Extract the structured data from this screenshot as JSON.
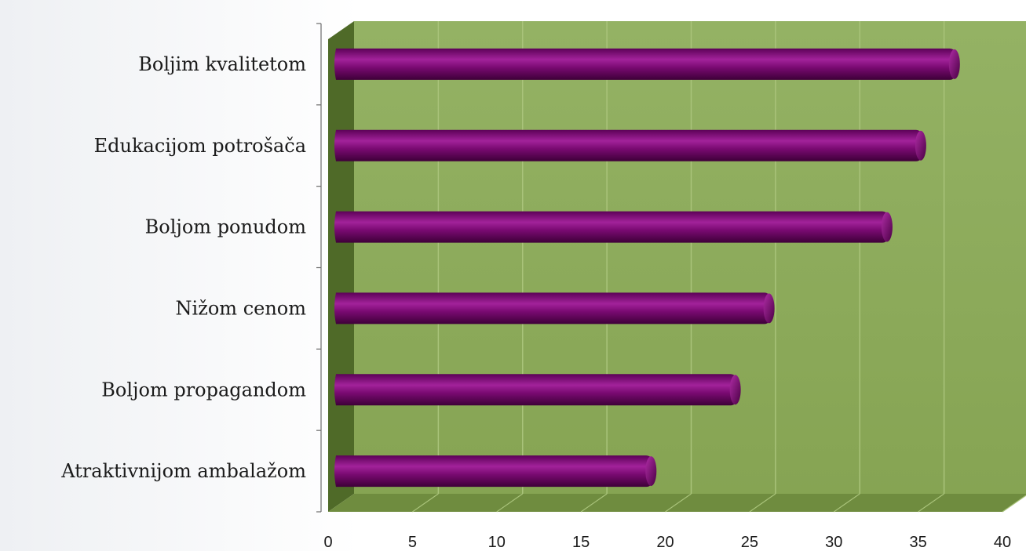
{
  "chart_data": {
    "type": "bar",
    "orientation": "horizontal",
    "categories": [
      "Atraktivnijom ambalažom",
      "Boljom propagandom",
      "Nižom cenom",
      "Boljom ponudom",
      "Edukacijom potrošača",
      "Boljim kvalitetom"
    ],
    "values": [
      18.5,
      23.5,
      25.5,
      32.5,
      34.5,
      36.5
    ],
    "title": "",
    "xlabel": "",
    "ylabel": "",
    "xlim": [
      0,
      40
    ],
    "xticks": [
      0,
      5,
      10,
      15,
      20,
      25,
      30,
      35,
      40
    ],
    "grid": true,
    "legend": "none",
    "colors": {
      "bar": "#7a0a72",
      "bar_highlight": "#a2229a",
      "bar_shadow": "#3e0038",
      "plot_back": "#8aa85a",
      "plot_floor": "#6f8c3f",
      "plot_side": "#4f6a28",
      "gridline": "#a9c37a"
    }
  }
}
